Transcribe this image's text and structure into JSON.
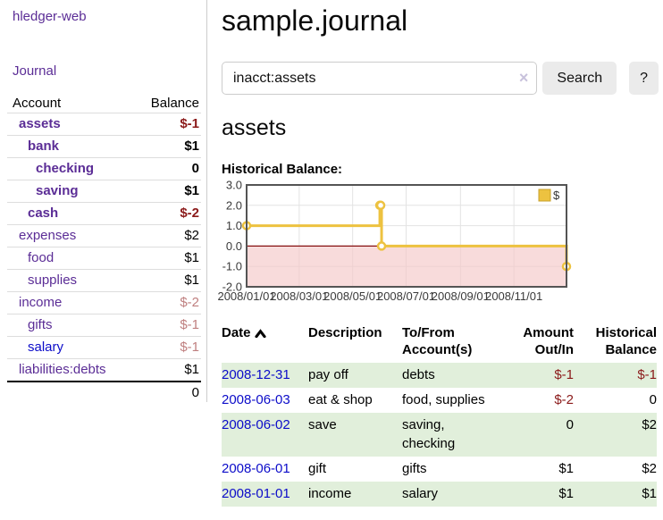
{
  "app": {
    "title": "hledger-web"
  },
  "colors": {
    "accent_purple": "#5b2d96",
    "link_blue": "#0c0cc9",
    "negative_strong": "#8b1a1a",
    "negative_soft": "#bf7f7f",
    "row_stripe_green": "#e1efdb",
    "button_bg": "#ebebeb"
  },
  "sidebar": {
    "journal_label": "Journal",
    "accounts_table": {
      "headers": {
        "account": "Account",
        "balance": "Balance"
      },
      "rows": [
        {
          "account": "assets",
          "balance": "$-1",
          "level": 1,
          "bold": true,
          "neg": "strong"
        },
        {
          "account": "bank",
          "balance": "$1",
          "level": 2,
          "bold": true,
          "neg": ""
        },
        {
          "account": "checking",
          "balance": "0",
          "level": 3,
          "bold": true,
          "neg": ""
        },
        {
          "account": "saving",
          "balance": "$1",
          "level": 3,
          "bold": true,
          "neg": ""
        },
        {
          "account": "cash",
          "balance": "$-2",
          "level": 2,
          "bold": true,
          "neg": "strong"
        },
        {
          "account": "expenses",
          "balance": "$2",
          "level": 1,
          "bold": false,
          "neg": ""
        },
        {
          "account": "food",
          "balance": "$1",
          "level": 2,
          "bold": false,
          "neg": ""
        },
        {
          "account": "supplies",
          "balance": "$1",
          "level": 2,
          "bold": false,
          "neg": ""
        },
        {
          "account": "income",
          "balance": "$-2",
          "level": 1,
          "bold": false,
          "neg": "soft"
        },
        {
          "account": "gifts",
          "balance": "$-1",
          "level": 2,
          "bold": false,
          "neg": "soft"
        },
        {
          "account": "salary",
          "balance": "$-1",
          "level": 2,
          "bold": false,
          "neg": "soft",
          "link_color": "blue"
        },
        {
          "account": "liabilities:debts",
          "balance": "$1",
          "level": 1,
          "bold": false,
          "neg": ""
        }
      ],
      "total": "0"
    }
  },
  "header": {
    "title": "sample.journal"
  },
  "search": {
    "value": "inacct:assets",
    "clear_icon": "×",
    "button_label": "Search",
    "help_label": "?"
  },
  "register": {
    "heading": "assets",
    "table": {
      "headers": {
        "date": "Date",
        "description": "Description",
        "accounts": "To/From Account(s)",
        "amount": "Amount Out/In",
        "balance": "Historical Balance"
      },
      "rows": [
        {
          "date": "2008-12-31",
          "description": "pay off",
          "accounts": "debts",
          "amount": "$-1",
          "balance": "$-1"
        },
        {
          "date": "2008-06-03",
          "description": "eat & shop",
          "accounts": "food, supplies",
          "amount": "$-2",
          "balance": "0"
        },
        {
          "date": "2008-06-02",
          "description": "save",
          "accounts": "saving, checking",
          "amount": "0",
          "balance": "$2"
        },
        {
          "date": "2008-06-01",
          "description": "gift",
          "accounts": "gifts",
          "amount": "$1",
          "balance": "$2"
        },
        {
          "date": "2008-01-01",
          "description": "income",
          "accounts": "salary",
          "amount": "$1",
          "balance": "$1"
        }
      ]
    }
  },
  "chart_data": {
    "type": "line",
    "step": true,
    "title": "Historical Balance:",
    "series": [
      {
        "name": "$",
        "color": "#edc240",
        "points": [
          {
            "x": "2008-01-01",
            "y": 1
          },
          {
            "x": "2008-06-01",
            "y": 2
          },
          {
            "x": "2008-06-02",
            "y": 2
          },
          {
            "x": "2008-06-03",
            "y": 0
          },
          {
            "x": "2008-12-31",
            "y": -1
          }
        ]
      }
    ],
    "xlim": [
      "2008-01-01",
      "2008-12-31"
    ],
    "ylim": [
      -2,
      3
    ],
    "x_tick_labels": [
      "2008/01/01",
      "2008/03/01",
      "2008/05/01",
      "2008/07/01",
      "2008/09/01",
      "2008/11/01"
    ],
    "y_tick_labels": [
      "3.0",
      "2.0",
      "1.0",
      "0.0",
      "-1.0",
      "-2.0"
    ],
    "grid": true,
    "legend_position": "top-right",
    "negative_region_fill": "#f4c8c8",
    "zero_line_color": "#871111"
  }
}
